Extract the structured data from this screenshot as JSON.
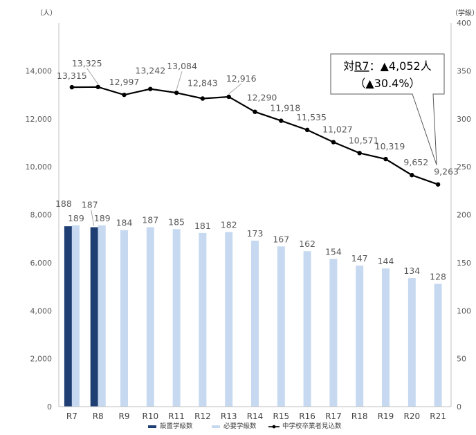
{
  "chart_data": {
    "type": "bar",
    "categories": [
      "R7",
      "R8",
      "R9",
      "R10",
      "R11",
      "R12",
      "R13",
      "R14",
      "R15",
      "R16",
      "R17",
      "R18",
      "R19",
      "R20",
      "R21"
    ],
    "series": [
      {
        "name": "設置学級数",
        "kind": "bar",
        "axis": "right",
        "color": "#1f3f74",
        "values": [
          188,
          187,
          null,
          null,
          null,
          null,
          null,
          null,
          null,
          null,
          null,
          null,
          null,
          null,
          null
        ]
      },
      {
        "name": "必要学級数",
        "kind": "bar",
        "axis": "right",
        "color": "#c6d9f1",
        "values": [
          189,
          189,
          184,
          187,
          185,
          181,
          182,
          173,
          167,
          162,
          154,
          147,
          144,
          134,
          128
        ]
      },
      {
        "name": "中学校卒業者見込数",
        "kind": "line",
        "axis": "left",
        "color": "#000000",
        "values": [
          13315,
          13325,
          12997,
          13242,
          13084,
          12843,
          12916,
          12290,
          11918,
          11535,
          11027,
          10571,
          10319,
          9652,
          9263
        ]
      }
    ],
    "left_axis": {
      "unit": "（人）",
      "ylim": [
        0,
        16000
      ],
      "ticks": [
        "0",
        "2,000",
        "4,000",
        "6,000",
        "8,000",
        "10,000",
        "12,000",
        "14,000"
      ]
    },
    "right_axis": {
      "unit": "（学級）",
      "ylim": [
        0,
        400
      ],
      "ticks": [
        "0",
        "50",
        "100",
        "150",
        "200",
        "250",
        "300",
        "350",
        "400"
      ]
    },
    "line_labels": [
      "13,315",
      "13,325",
      "12,997",
      "13,242",
      "13,084",
      "12,843",
      "12,916",
      "12,290",
      "11,918",
      "11,535",
      "11,027",
      "10,571",
      "10,319",
      "9,652",
      "9,263"
    ],
    "bar_labels_installed": [
      "188",
      "187"
    ],
    "bar_labels_required": [
      "189",
      "189",
      "184",
      "187",
      "185",
      "181",
      "182",
      "173",
      "167",
      "162",
      "154",
      "147",
      "144",
      "134",
      "128"
    ],
    "highlight_color": "#ff0000",
    "callout": {
      "line1_prefix": "対",
      "line1_ref": "R7",
      "line1_suffix": "：▲4,052人",
      "line2": "（▲30.4%）"
    },
    "legend_position": "bottom",
    "grid": false
  }
}
